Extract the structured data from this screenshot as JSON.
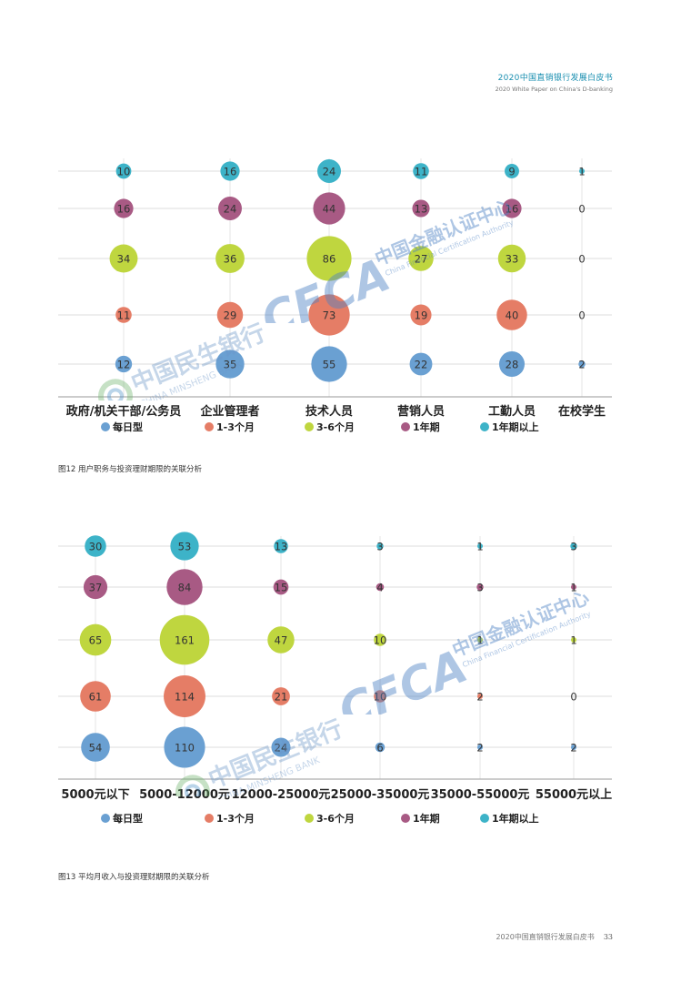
{
  "header": {
    "title": "2020中国直销银行发展白皮书",
    "subtitle": "2020 White Paper on China's D-banking"
  },
  "footer": {
    "title": "2020中国直销银行发展白皮书",
    "page": "33"
  },
  "watermarks": {
    "cfca_logo": "CFCA",
    "cfca_cn": "中国金融认证中心",
    "cfca_en": "China Financial Certification Authority",
    "cmbc_cn": "中国民生银行",
    "cmbc_en": "CHINA MINSHENG BANK"
  },
  "colors": {
    "每日型": "#6aa0d2",
    "1-3个月": "#e57d66",
    "3-6个月": "#bfd63f",
    "1年期": "#a85a84",
    "1年期以上": "#3db3c8"
  },
  "chart_data": [
    {
      "type": "bubble",
      "caption": "图12 用户职务与投资理财期限的关联分析",
      "categories": [
        "政府/机关干部/公务员",
        "企业管理者",
        "技术人员",
        "营销人员",
        "工勤人员",
        "在校学生"
      ],
      "series": [
        {
          "name": "每日型",
          "values": [
            12,
            35,
            55,
            22,
            28,
            2
          ]
        },
        {
          "name": "1-3个月",
          "values": [
            11,
            29,
            73,
            19,
            40,
            0
          ]
        },
        {
          "name": "3-6个月",
          "values": [
            34,
            36,
            86,
            27,
            33,
            0
          ]
        },
        {
          "name": "1年期",
          "values": [
            16,
            24,
            44,
            13,
            16,
            0
          ]
        },
        {
          "name": "1年期以上",
          "values": [
            10,
            16,
            24,
            11,
            9,
            1
          ]
        }
      ],
      "legend": "bottom",
      "grid": true
    },
    {
      "type": "bubble",
      "caption": "图13 平均月收入与投资理财期限的关联分析",
      "categories": [
        "5000元以下",
        "5000-12000元",
        "12000-25000元",
        "25000-35000元",
        "35000-55000元",
        "55000元以上"
      ],
      "series": [
        {
          "name": "每日型",
          "values": [
            54,
            110,
            24,
            6,
            2,
            2
          ]
        },
        {
          "name": "1-3个月",
          "values": [
            61,
            114,
            21,
            10,
            2,
            0
          ]
        },
        {
          "name": "3-6个月",
          "values": [
            65,
            161,
            47,
            10,
            1,
            1
          ]
        },
        {
          "name": "1年期",
          "values": [
            37,
            84,
            15,
            4,
            3,
            1
          ]
        },
        {
          "name": "1年期以上",
          "values": [
            30,
            53,
            13,
            3,
            1,
            3
          ]
        }
      ],
      "legend": "bottom",
      "grid": true
    }
  ]
}
